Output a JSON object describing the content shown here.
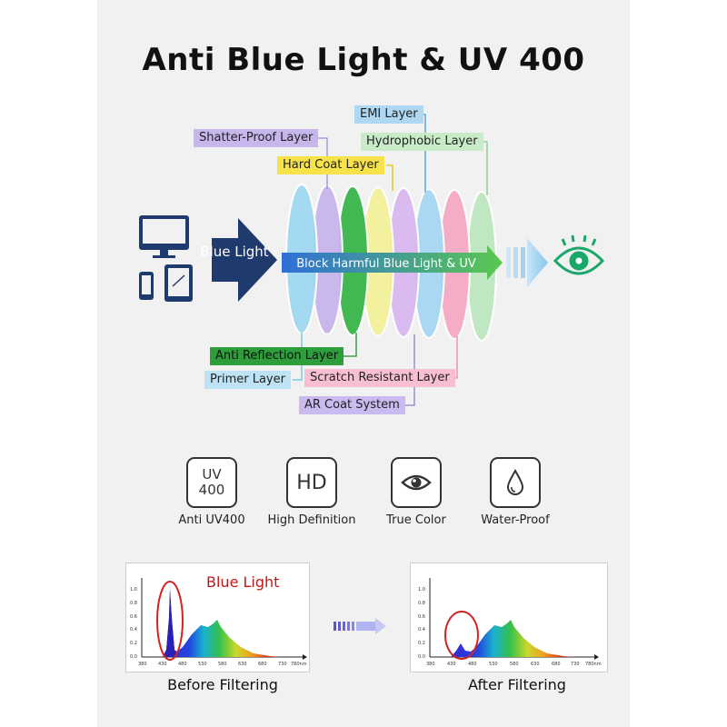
{
  "title": "Anti Blue Light & UV 400",
  "source_label": "Blue Light",
  "beam_label": "Block Harmful Blue Light & UV",
  "layers": {
    "emi": "EMI Layer",
    "shatter_proof": "Shatter-Proof Layer",
    "hydrophobic": "Hydrophobic Layer",
    "hard_coat": "Hard Coat Layer",
    "anti_reflection": "Anti Reflection Layer",
    "primer": "Primer Layer",
    "scratch_resistant": "Scratch Resistant Layer",
    "ar_coat_system": "AR Coat System"
  },
  "features": [
    {
      "icon": "uv400-icon",
      "icon_text_1": "UV",
      "icon_text_2": "400",
      "label": "Anti UV400"
    },
    {
      "icon": "hd-icon",
      "icon_text_1": "HD",
      "label": "High Definition"
    },
    {
      "icon": "eye-icon",
      "label": "True Color"
    },
    {
      "icon": "water-drop-icon",
      "label": "Water-Proof"
    }
  ],
  "spectrum": {
    "callout": "Blue Light",
    "y_ticks": [
      "1.0",
      "0.8",
      "0.6",
      "0.4",
      "0.2",
      "0.0"
    ],
    "x_ticks": [
      "380",
      "430",
      "480",
      "530",
      "580",
      "630",
      "680",
      "730",
      "780nm"
    ],
    "before_caption": "Before Filtering",
    "after_caption": "After Filtering"
  },
  "colors": {
    "navy": "#1f3b6e",
    "beam_start": "#2f6fd8",
    "beam_end": "#5ac850",
    "eye": "#1aa86a",
    "callout_red": "#d22222"
  }
}
